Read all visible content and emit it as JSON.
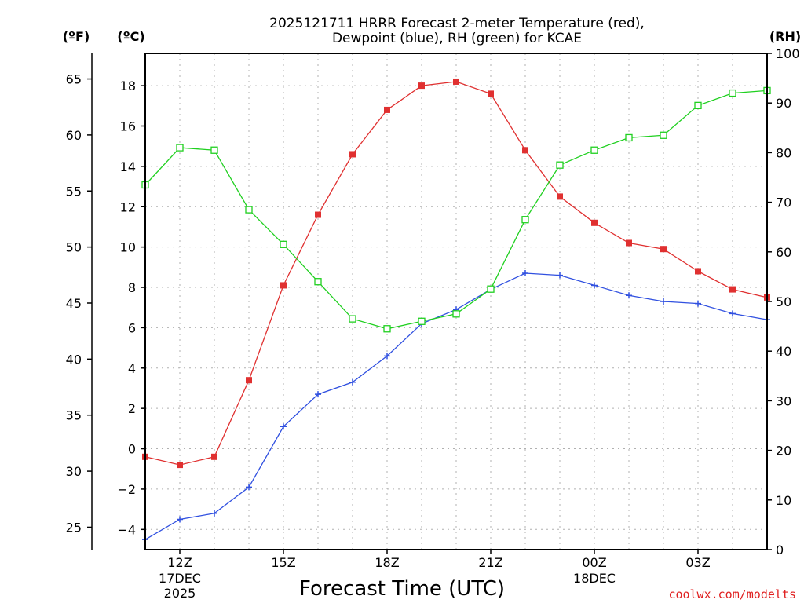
{
  "chart_data": {
    "type": "line",
    "title_line1": "2025121711 HRRR Forecast 2-meter Temperature (red),",
    "title_line2": "Dewpoint (blue), RH (green) for KCAE",
    "xlabel": "Forecast Time (UTC)",
    "credit": "coolwx.com/modelts",
    "x_hours": [
      0,
      1,
      2,
      3,
      4,
      5,
      6,
      7,
      8,
      9,
      10,
      11,
      12,
      13,
      14,
      15,
      16,
      17,
      18
    ],
    "x_ticks": [
      {
        "hour": 1,
        "label": "12Z",
        "sub1": "17DEC",
        "sub2": "2025"
      },
      {
        "hour": 4,
        "label": "15Z",
        "sub1": "",
        "sub2": ""
      },
      {
        "hour": 7,
        "label": "18Z",
        "sub1": "",
        "sub2": ""
      },
      {
        "hour": 10,
        "label": "21Z",
        "sub1": "",
        "sub2": ""
      },
      {
        "hour": 13,
        "label": "00Z",
        "sub1": "18DEC",
        "sub2": ""
      },
      {
        "hour": 16,
        "label": "03Z",
        "sub1": "",
        "sub2": ""
      }
    ],
    "axes": {
      "celsius": {
        "unit_label": "(ºC)",
        "range": [
          -5.0,
          19.6
        ],
        "ticks": [
          "-4",
          "-2",
          "0",
          "2",
          "4",
          "6",
          "8",
          "10",
          "12",
          "14",
          "16",
          "18"
        ]
      },
      "fahrenheit": {
        "unit_label": "(ºF)",
        "ticks": [
          "25",
          "30",
          "35",
          "40",
          "45",
          "50",
          "55",
          "60",
          "65"
        ]
      },
      "rh": {
        "unit_label": "(RH)",
        "range": [
          0,
          100
        ],
        "ticks": [
          "0",
          "10",
          "20",
          "30",
          "40",
          "50",
          "60",
          "70",
          "80",
          "90",
          "100"
        ]
      }
    },
    "series": [
      {
        "name": "Temperature",
        "unit": "C",
        "color": "#e03030",
        "marker": "filled-square",
        "values": [
          -0.4,
          -0.8,
          -0.4,
          3.4,
          8.1,
          11.6,
          14.6,
          16.8,
          18.0,
          18.2,
          17.6,
          14.8,
          12.5,
          11.2,
          10.2,
          9.9,
          8.8,
          7.9,
          7.5
        ]
      },
      {
        "name": "Dewpoint",
        "unit": "C",
        "color": "#3050e0",
        "marker": "plus",
        "values": [
          -4.5,
          -3.5,
          -3.2,
          -1.9,
          1.1,
          2.7,
          3.3,
          4.6,
          6.2,
          6.9,
          7.9,
          8.7,
          8.6,
          8.1,
          7.6,
          7.3,
          7.2,
          6.7,
          6.4
        ]
      },
      {
        "name": "RH",
        "unit": "%",
        "color": "#20d020",
        "marker": "open-square",
        "values": [
          73.5,
          81,
          80.5,
          68.5,
          61.5,
          54,
          46.5,
          44.5,
          46,
          47.5,
          52.5,
          66.5,
          77.5,
          80.5,
          83,
          83.5,
          89.5,
          92,
          92.5
        ]
      }
    ]
  }
}
